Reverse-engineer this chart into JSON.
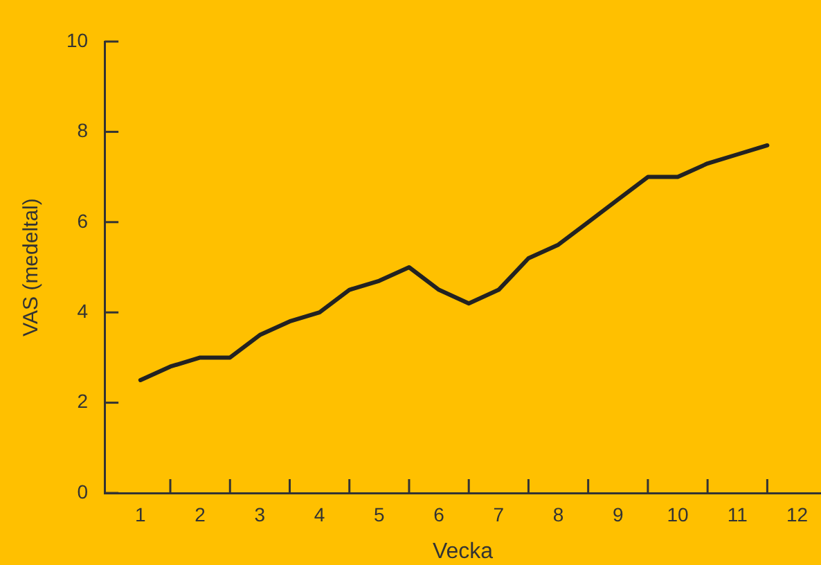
{
  "chart_data": {
    "type": "line",
    "xlabel": "Vecka",
    "ylabel": "VAS (medeltal)",
    "x": [
      1,
      1.5,
      2,
      2.5,
      3,
      3.5,
      4,
      4.5,
      5,
      5.5,
      6,
      6.5,
      7,
      7.5,
      8,
      8.5,
      9,
      9.5,
      10,
      10.5,
      11,
      11.5
    ],
    "series": [
      {
        "color": "#222222",
        "values": [
          2.5,
          2.8,
          3.0,
          3.0,
          3.5,
          3.8,
          4.0,
          4.5,
          4.7,
          5.0,
          4.5,
          4.2,
          4.5,
          5.2,
          5.5,
          6.0,
          6.5,
          7.0,
          7.0,
          7.3,
          7.5,
          7.7
        ]
      }
    ],
    "xlim": [
      0.4,
      12.4
    ],
    "xticks": [
      1,
      {
        "value": 1.5,
        "label": null
      },
      2,
      {
        "value": 2.5,
        "label": null
      },
      3,
      {
        "value": 3.5,
        "label": null
      },
      4,
      {
        "value": 4.5,
        "label": null
      },
      5,
      {
        "value": 5.5,
        "label": null
      },
      6,
      {
        "value": 6.5,
        "label": null
      },
      7,
      {
        "value": 7.5,
        "label": null
      },
      8,
      {
        "value": 8.5,
        "label": null
      },
      9,
      {
        "value": 9.5,
        "label": null
      },
      10,
      {
        "value": 10.5,
        "label": null
      },
      11,
      {
        "value": 11.5,
        "label": null
      },
      12
    ],
    "ylim": [
      0,
      10
    ],
    "yticks": [
      0,
      2,
      4,
      6,
      8,
      10
    ],
    "grid": false,
    "legend": false,
    "marker": "none",
    "line_style": "solid"
  }
}
